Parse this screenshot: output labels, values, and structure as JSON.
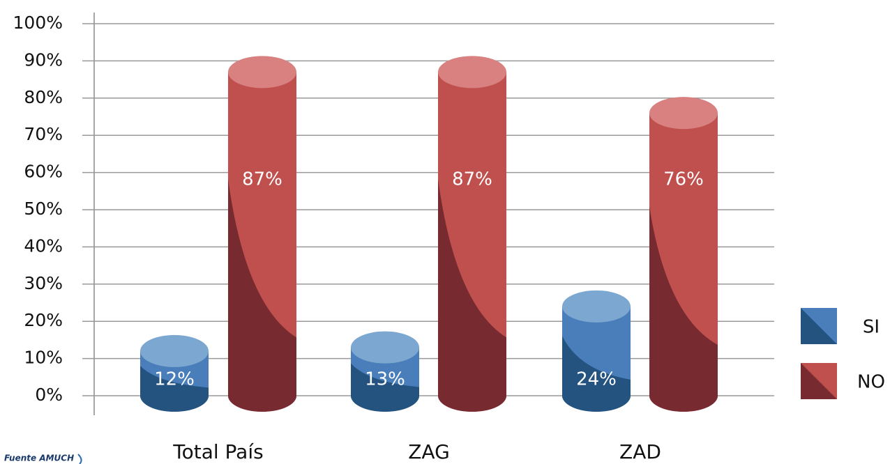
{
  "chart_data": {
    "type": "bar",
    "categories": [
      "Total País",
      "ZAG",
      "ZAD"
    ],
    "series": [
      {
        "name": "SI",
        "color": "#4a7ebb",
        "values": [
          12,
          13,
          24
        ],
        "value_labels": [
          "12%",
          "13%",
          "24%"
        ]
      },
      {
        "name": "NO",
        "color": "#c0504d",
        "values": [
          87,
          87,
          76
        ],
        "value_labels": [
          "87%",
          "87%",
          "76%"
        ]
      }
    ],
    "ylim": [
      0,
      100
    ],
    "yticks": [
      {
        "value": 0,
        "label": "0%"
      },
      {
        "value": 10,
        "label": "10%"
      },
      {
        "value": 20,
        "label": "20%"
      },
      {
        "value": 30,
        "label": "30%"
      },
      {
        "value": 40,
        "label": "40%"
      },
      {
        "value": 50,
        "label": "50%"
      },
      {
        "value": 60,
        "label": "60%"
      },
      {
        "value": 70,
        "label": "70%"
      },
      {
        "value": 80,
        "label": "80%"
      },
      {
        "value": 90,
        "label": "90%"
      },
      {
        "value": 100,
        "label": "100%"
      }
    ],
    "grid": true,
    "legend": "right",
    "source": "Fuente AMUCH"
  }
}
